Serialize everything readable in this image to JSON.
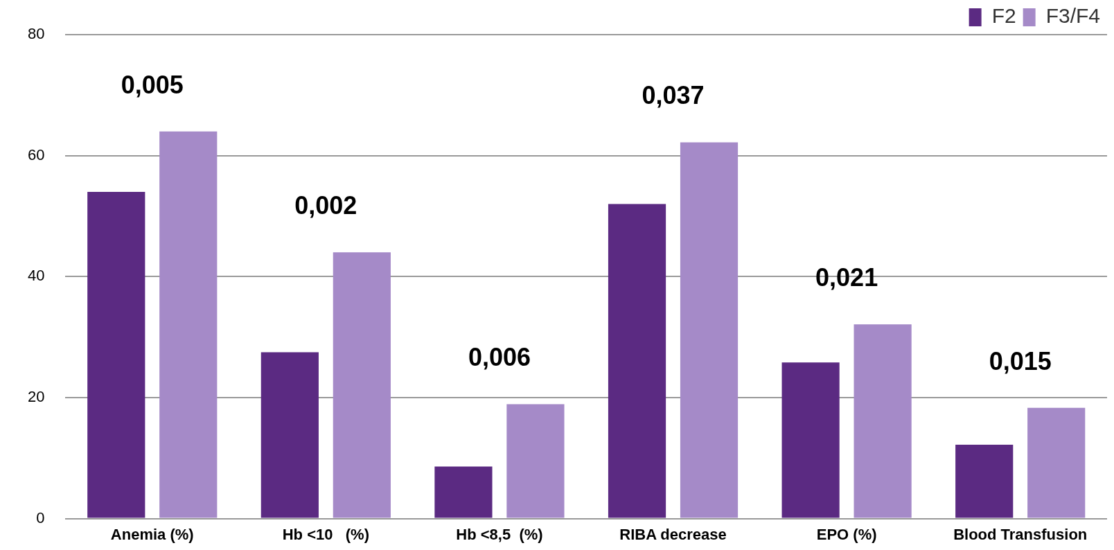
{
  "chart_data": {
    "type": "bar",
    "categories": [
      "Anemia (%)",
      "Hb <10   (%)",
      "Hb <8,5  (%)",
      "RIBA decrease",
      "EPO (%)",
      "Blood Transfusion"
    ],
    "series": [
      {
        "name": "F2",
        "color": "#5b2a82",
        "values": [
          54,
          27.5,
          8.6,
          52,
          25.8,
          12.2
        ]
      },
      {
        "name": "F3/F4",
        "color": "#a58ac8",
        "values": [
          64,
          44,
          18.9,
          62.2,
          32.1,
          18.3
        ]
      }
    ],
    "ylim": [
      0,
      80
    ],
    "yticks": [
      0,
      20,
      40,
      60,
      80
    ],
    "grid": "y",
    "legend": "top right",
    "annotations": [
      "0,005",
      "0,002",
      "0,006",
      "0,037",
      "0,021",
      "0,015"
    ]
  }
}
